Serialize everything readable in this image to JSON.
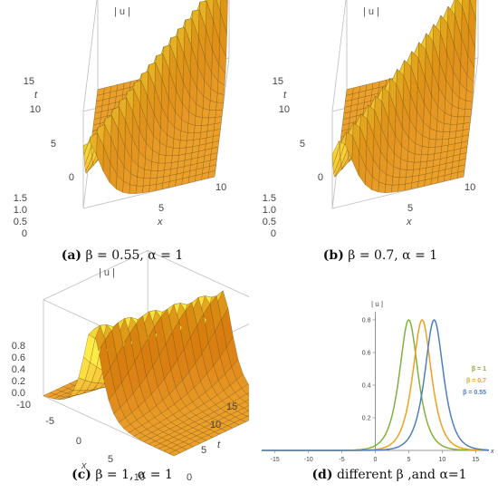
{
  "captions": {
    "a": {
      "tag": "(a)",
      "text": "β = 0.55, α = 1"
    },
    "b": {
      "tag": "(b)",
      "text": "β = 0.7, α = 1"
    },
    "c": {
      "tag": "(c)",
      "text": "β = 1, α = 1"
    },
    "d": {
      "tag": "(d)",
      "text": "different β ,and α=1"
    }
  },
  "chart_data": [
    {
      "type": "surface",
      "title": "| u |",
      "xlabel": "x",
      "tlabel": "t",
      "z_ticks": [
        "1.5",
        "1.0",
        "0.5",
        "0"
      ],
      "t_ticks": [
        "15",
        "10",
        "5",
        "0"
      ],
      "x_ticks": [
        "5",
        "10"
      ],
      "beta": 0.55,
      "alpha": 1,
      "colors": {
        "surface": "#f6ac2a",
        "mesh": "#6b4a10"
      }
    },
    {
      "type": "surface",
      "title": "| u |",
      "xlabel": "x",
      "tlabel": "t",
      "z_ticks": [
        "1.5",
        "1.0",
        "0.5",
        "0"
      ],
      "t_ticks": [
        "15",
        "10",
        "5",
        "0"
      ],
      "x_ticks": [
        "5",
        "10"
      ],
      "beta": 0.7,
      "alpha": 1,
      "colors": {
        "surface": "#f6ac2a",
        "mesh": "#6b4a10"
      }
    },
    {
      "type": "surface",
      "title": "| u |",
      "xlabel": "x",
      "tlabel": "t",
      "z_ticks": [
        "0.8",
        "0.6",
        "0.4",
        "0.2",
        "0.0"
      ],
      "x_ticks": [
        "-10",
        "-5",
        "0",
        "5",
        "10"
      ],
      "t_ticks": [
        "0",
        "5",
        "10",
        "15"
      ],
      "beta": 1,
      "alpha": 1,
      "colors": {
        "surface": "#f6ac2a",
        "mesh": "#6b4a10"
      }
    },
    {
      "type": "line",
      "ylabel": "| u |",
      "xlabel": "x",
      "xlim": [
        -17,
        17
      ],
      "ylim": [
        0,
        0.85
      ],
      "x_ticks": [
        -15,
        -10,
        -5,
        0,
        5,
        10,
        15
      ],
      "y_ticks": [
        0.2,
        0.4,
        0.6,
        0.8
      ],
      "amplitude": 0.8,
      "legend": "right",
      "series": [
        {
          "name": "β = 1",
          "color": "#7fb23a",
          "peak_x": 5.0,
          "width": 1.25
        },
        {
          "name": "β = 0.7",
          "color": "#f0a01e",
          "peak_x": 7.0,
          "width": 1.25
        },
        {
          "name": "β = 0.55",
          "color": "#4d7fc0",
          "peak_x": 8.8,
          "width": 1.25
        }
      ]
    }
  ]
}
